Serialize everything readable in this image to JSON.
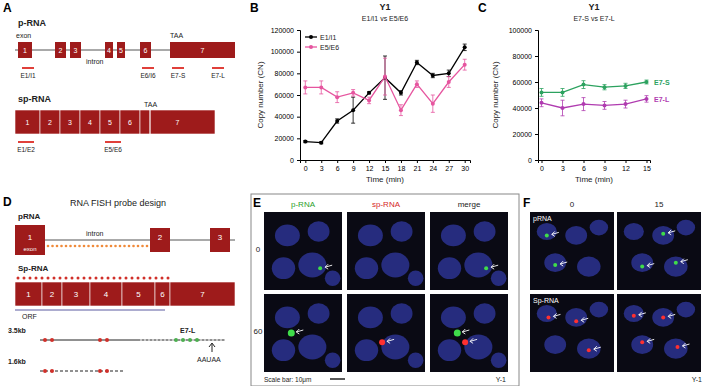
{
  "chart_data": [
    {
      "type": "line",
      "title": "Y1",
      "subtitle": "E1/I1 vs E5/E6",
      "x_label": "Time (min)",
      "y_label": "Copy number (CN)",
      "x": [
        0,
        3,
        6,
        9,
        12,
        15,
        18,
        21,
        24,
        27,
        30
      ],
      "xlim": [
        -1,
        31
      ],
      "xticks": [
        0,
        3,
        6,
        9,
        12,
        15,
        18,
        21,
        24,
        27,
        30
      ],
      "ylim": [
        0,
        120000
      ],
      "yticks": [
        0,
        20000,
        40000,
        60000,
        80000,
        100000,
        120000
      ],
      "grid": false,
      "legend": "upper left",
      "series": [
        {
          "name": "E1/I1",
          "color": "#000000",
          "marker": "circle",
          "values": [
            17000,
            16000,
            36000,
            46000,
            62000,
            76000,
            62000,
            90000,
            78000,
            80000,
            104000
          ],
          "errors": [
            1000,
            1000,
            2000,
            12000,
            1000,
            20000,
            2000,
            2000,
            2000,
            3000,
            3000
          ]
        },
        {
          "name": "E5/E6",
          "color": "#e6559f",
          "marker": "circle",
          "values": [
            67000,
            67000,
            58000,
            62000,
            55000,
            77000,
            46000,
            70000,
            52000,
            72000,
            88000
          ],
          "errors": [
            6000,
            6000,
            5000,
            3000,
            3000,
            17000,
            5000,
            3000,
            8000,
            5000,
            5000
          ]
        }
      ]
    },
    {
      "type": "line",
      "title": "Y1",
      "subtitle": "E7-S vs E7-L",
      "x_label": "Time (min)",
      "y_label": "Copy number (CN)",
      "x": [
        0,
        3,
        6,
        9,
        12,
        15
      ],
      "xlim": [
        -0.5,
        15.5
      ],
      "xticks": [
        0,
        3,
        6,
        9,
        12,
        15
      ],
      "ylim": [
        0,
        100000
      ],
      "yticks": [
        0,
        20000,
        40000,
        60000,
        80000,
        100000
      ],
      "grid": false,
      "legend": "right",
      "series": [
        {
          "name": "E7-S",
          "color": "#2ca25f",
          "marker": "circle",
          "values": [
            52000,
            52000,
            58000,
            56000,
            57000,
            60000
          ],
          "errors": [
            3000,
            3000,
            3000,
            2000,
            2000,
            1500
          ]
        },
        {
          "name": "E7-L",
          "color": "#b03cb0",
          "marker": "circle",
          "values": [
            44000,
            40000,
            43000,
            42000,
            43000,
            47000
          ],
          "errors": [
            3000,
            6000,
            5000,
            3000,
            3000,
            2500
          ]
        }
      ]
    }
  ],
  "panels": {
    "letters": [
      "A",
      "B",
      "C",
      "D",
      "E",
      "F"
    ],
    "A": {
      "p_rna": {
        "title": "p-RNA",
        "exons": [
          "1",
          "2",
          "3",
          "4",
          "5",
          "6",
          "7"
        ],
        "exon_label": "exon",
        "intron_label": "intron",
        "stop": "TAA",
        "primers": [
          "E1/I1",
          "E6/I6",
          "E7-S",
          "E7-L"
        ]
      },
      "sp_rna": {
        "title": "sp-RNA",
        "exons": [
          "1",
          "2",
          "3",
          "4",
          "5",
          "6",
          "7"
        ],
        "stop": "TAA",
        "primers": [
          "E1/E2",
          "E5/E6"
        ]
      }
    },
    "D": {
      "title": "RNA FISH probe design",
      "p_rna": {
        "title": "pRNA",
        "exons": [
          "1",
          "2",
          "3"
        ],
        "exon_label": "exon",
        "intron_label": "intron"
      },
      "sp_rna": {
        "title": "Sp-RNA",
        "exons": [
          "1",
          "2",
          "3",
          "4",
          "5",
          "6",
          "7"
        ],
        "orf": "ORF"
      },
      "transcripts": [
        {
          "label": "3.5kb",
          "probe": "E7-L",
          "signal": "AAUAA"
        },
        {
          "label": "1.6kb"
        }
      ]
    },
    "E": {
      "columns": [
        "p-RNA",
        "sp-RNA",
        "merge"
      ],
      "rows": [
        "0",
        "60"
      ],
      "scale_bar": "Scale bar: 10μm",
      "cell_line": "Y-1"
    },
    "F": {
      "columns": [
        "0",
        "15"
      ],
      "rows": [
        "pRNA",
        "Sp-RNA"
      ],
      "cell_line": "Y-1"
    }
  }
}
